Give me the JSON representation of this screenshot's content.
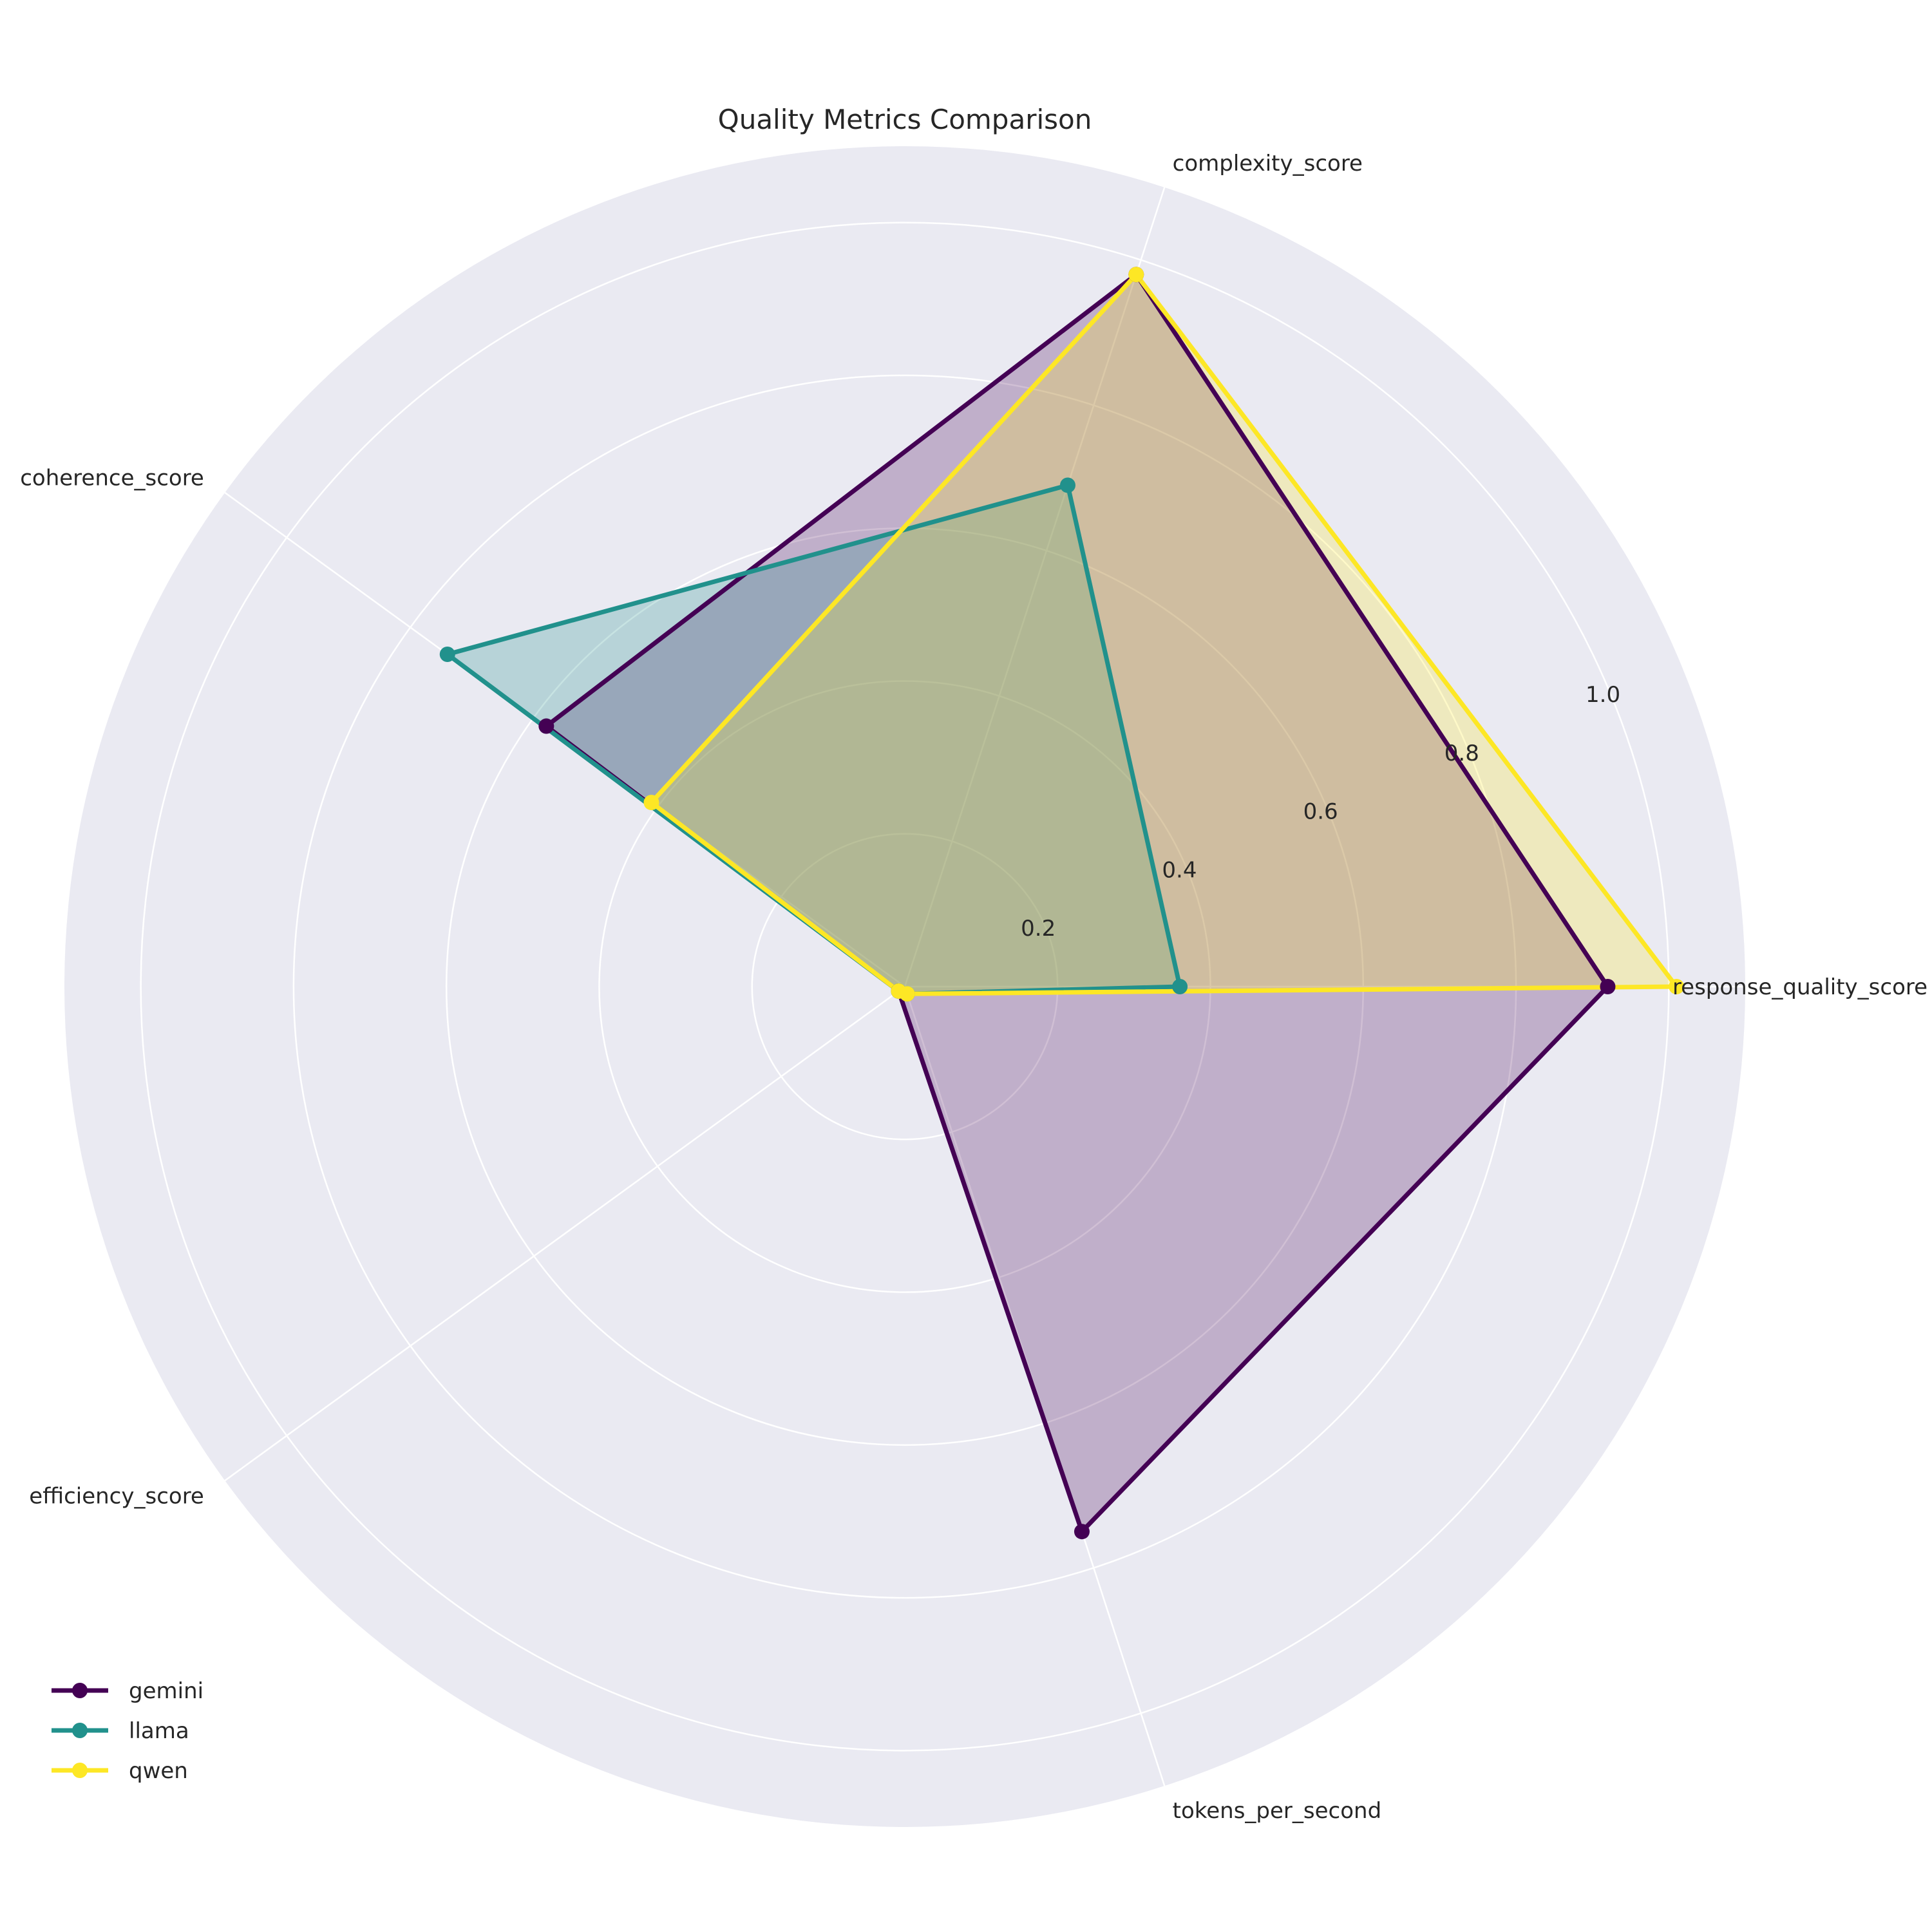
{
  "chart_data": {
    "type": "radar",
    "title": "Quality Metrics Comparison",
    "axes": [
      "response_quality_score",
      "complexity_score",
      "coherence_score",
      "efficiency_score",
      "tokens_per_second"
    ],
    "rlim": [
      0,
      1.1
    ],
    "rticks": [
      0.2,
      0.4,
      0.6,
      0.8,
      1.0
    ],
    "rtick_labels": [
      "0.2",
      "0.4",
      "0.6",
      "0.8",
      "1.0"
    ],
    "grid": true,
    "legend_position": "lower-left",
    "series": [
      {
        "name": "gemini",
        "color": "#440154",
        "values": [
          0.92,
          0.98,
          0.58,
          0.01,
          0.75
        ]
      },
      {
        "name": "llama",
        "color": "#21918c",
        "values": [
          0.36,
          0.69,
          0.74,
          0.01,
          0.01
        ]
      },
      {
        "name": "qwen",
        "color": "#fde725",
        "values": [
          1.01,
          0.98,
          0.41,
          0.01,
          0.01
        ]
      }
    ],
    "background_color": "#eaeaf2",
    "grid_color": "#ffffff"
  }
}
